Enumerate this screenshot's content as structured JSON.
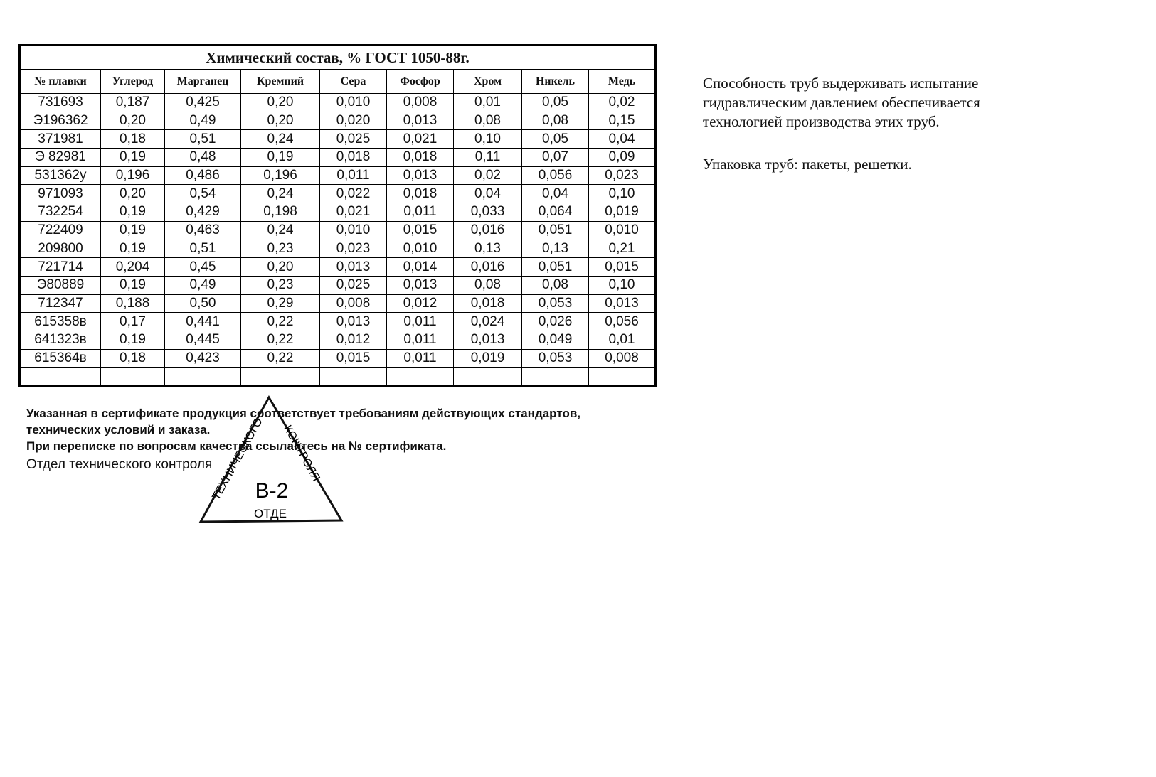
{
  "table": {
    "title": "Химический  состав, % ГОСТ 1050-88г.",
    "header": [
      "№  плавки",
      "Углерод",
      "Марганец",
      "Кремний",
      "Сера",
      "Фосфор",
      "Хром",
      "Никель",
      "Медь"
    ],
    "rows": [
      [
        "731693",
        "0,187",
        "0,425",
        "0,20",
        "0,010",
        "0,008",
        "0,01",
        "0,05",
        "0,02"
      ],
      [
        "Э196362",
        "0,20",
        "0,49",
        "0,20",
        "0,020",
        "0,013",
        "0,08",
        "0,08",
        "0,15"
      ],
      [
        "371981",
        "0,18",
        "0,51",
        "0,24",
        "0,025",
        "0,021",
        "0,10",
        "0,05",
        "0,04"
      ],
      [
        "Э 82981",
        "0,19",
        "0,48",
        "0,19",
        "0,018",
        "0,018",
        "0,11",
        "0,07",
        "0,09"
      ],
      [
        "531362у",
        "0,196",
        "0,486",
        "0,196",
        "0,011",
        "0,013",
        "0,02",
        "0,056",
        "0,023"
      ],
      [
        "971093",
        "0,20",
        "0,54",
        "0,24",
        "0,022",
        "0,018",
        "0,04",
        "0,04",
        "0,10"
      ],
      [
        "732254",
        "0,19",
        "0,429",
        "0,198",
        "0,021",
        "0,011",
        "0,033",
        "0,064",
        "0,019"
      ],
      [
        "722409",
        "0,19",
        "0,463",
        "0,24",
        "0,010",
        "0,015",
        "0,016",
        "0,051",
        "0,010"
      ],
      [
        "209800",
        "0,19",
        "0,51",
        "0,23",
        "0,023",
        "0,010",
        "0,13",
        "0,13",
        "0,21"
      ],
      [
        "721714",
        "0,204",
        "0,45",
        "0,20",
        "0,013",
        "0,014",
        "0,016",
        "0,051",
        "0,015"
      ],
      [
        "Э80889",
        "0,19",
        "0,49",
        "0,23",
        "0,025",
        "0,013",
        "0,08",
        "0,08",
        "0,10"
      ],
      [
        "712347",
        "0,188",
        "0,50",
        "0,29",
        "0,008",
        "0,012",
        "0,018",
        "0,053",
        "0,013"
      ],
      [
        "615358в",
        "0,17",
        "0,441",
        "0,22",
        "0,013",
        "0,011",
        "0,024",
        "0,026",
        "0,056"
      ],
      [
        "641323в",
        "0,19",
        "0,445",
        "0,22",
        "0,012",
        "0,011",
        "0,013",
        "0,049",
        "0,01"
      ],
      [
        "615364в",
        "0,18",
        "0,423",
        "0,22",
        "0,015",
        "0,011",
        "0,019",
        "0,053",
        "0,008"
      ]
    ]
  },
  "side": {
    "paragraph1": [
      "Способность  труб выдерживать испытание",
      "гидравлическим  давлением обеспечивается",
      "технологией производства этих труб."
    ],
    "paragraph2": "Упаковка труб: пакеты, решетки."
  },
  "footer": [
    "Указанная в сертификате продукция соответствует требованиям действующих стандартов,",
    "технических условий и заказа.",
    "При переписке по вопросам качества ссылайтесь на № сертификата.",
    "Отдел технического контроля"
  ],
  "stamp": {
    "left": "ТЕХНИЧЕСКОГО",
    "right": "КОНТРОЛЯ",
    "center": "В-2",
    "bottom": "ОТДЕ"
  }
}
